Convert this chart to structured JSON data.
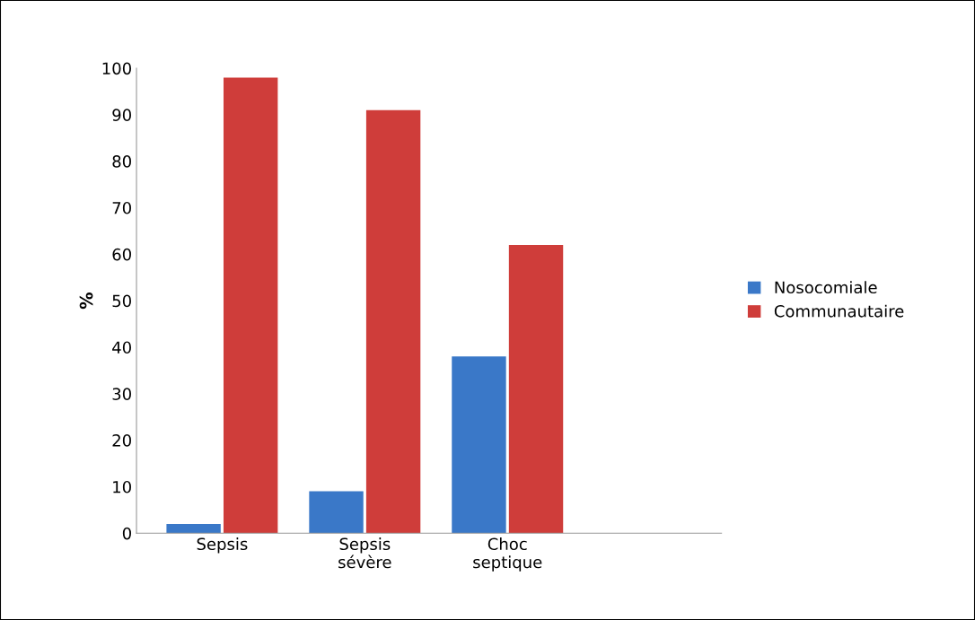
{
  "chart_data": {
    "type": "bar",
    "ylabel": "%",
    "categories": [
      "Sepsis",
      "Sepsis\nsévère",
      "Choc\nseptique"
    ],
    "series": [
      {
        "name": "Nosocomiale",
        "color": "#3a78c8",
        "values": [
          2,
          9,
          38
        ]
      },
      {
        "name": "Communautaire",
        "color": "#cf3d3a",
        "values": [
          98,
          91,
          62
        ]
      }
    ],
    "ylim": [
      0,
      100
    ],
    "yticks": [
      0,
      10,
      20,
      30,
      40,
      50,
      60,
      70,
      80,
      90,
      100
    ],
    "grid": false,
    "legend": "right"
  }
}
